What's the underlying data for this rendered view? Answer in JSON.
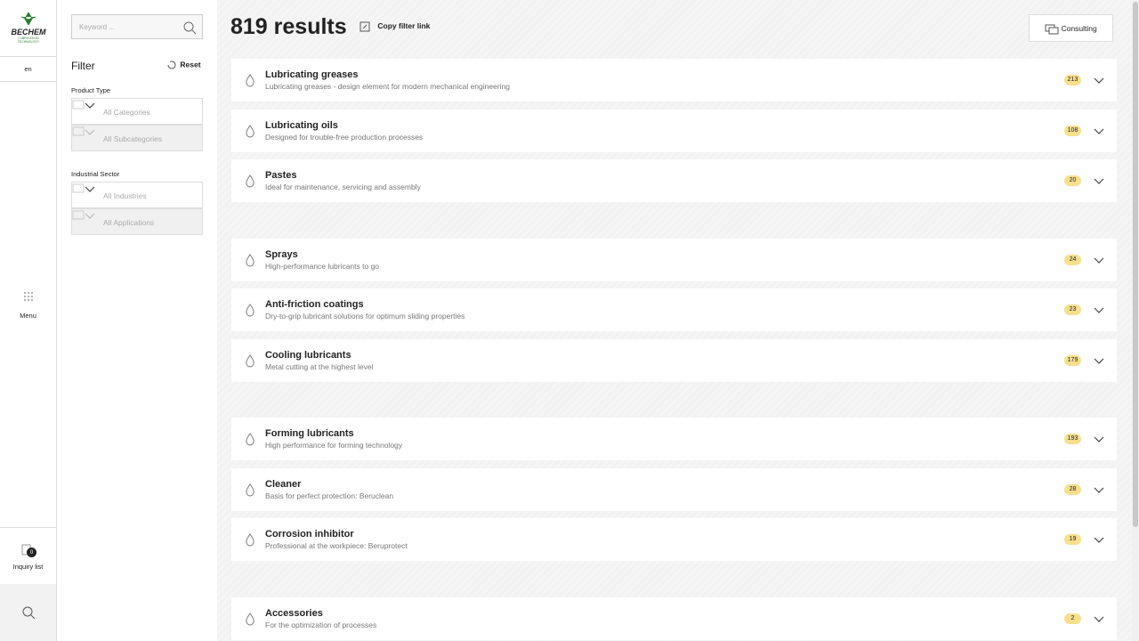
{
  "sidebar": {
    "logo": "BECHEM",
    "logo_tagline": "LUBRICATION TECHNOLOGY",
    "language": "en",
    "menu": "Menu",
    "inquiry_list": "Inquiry list",
    "inquiry_count": 0
  },
  "filter": {
    "search_placeholder": "Keyword ...",
    "title": "Filter",
    "reset": "Reset",
    "sections": [
      {
        "label": "Product Type",
        "selects": [
          "All Categories",
          "All Subcategories"
        ]
      },
      {
        "label": "Industrial Sector",
        "selects": [
          "All Industries",
          "All Applications"
        ]
      }
    ]
  },
  "header": {
    "results": "819 results",
    "copy_link": "Copy filter link",
    "consulting": "Consulting"
  },
  "groups": [
    [
      {
        "title": "Lubricating greases",
        "description": "Lubricating greases - design element for modern mechanical engineering",
        "count": 213
      },
      {
        "title": "Lubricating oils",
        "description": "Designed for trouble-free production processes",
        "count": 108
      },
      {
        "title": "Pastes",
        "description": "Ideal for maintenance, servicing and assembly",
        "count": 20
      }
    ],
    [
      {
        "title": "Sprays",
        "description": "High-performance lubricants to go",
        "count": 24
      },
      {
        "title": "Anti-friction coatings",
        "description": "Dry-to-grip lubricant solutions for optimum sliding properties",
        "count": 23
      },
      {
        "title": "Cooling lubricants",
        "description": "Metal cutting at the highest level",
        "count": 179
      }
    ],
    [
      {
        "title": "Forming lubricants",
        "description": "High performance for forming technology",
        "count": 193
      },
      {
        "title": "Cleaner",
        "description": "Basis for perfect protection: Beruclean",
        "count": 28
      },
      {
        "title": "Corrosion inhibitor",
        "description": "Professional at the workpiece: Beruprotect",
        "count": 19
      }
    ],
    [
      {
        "title": "Accessories",
        "description": "For the optimization of processes",
        "count": 2
      }
    ]
  ]
}
